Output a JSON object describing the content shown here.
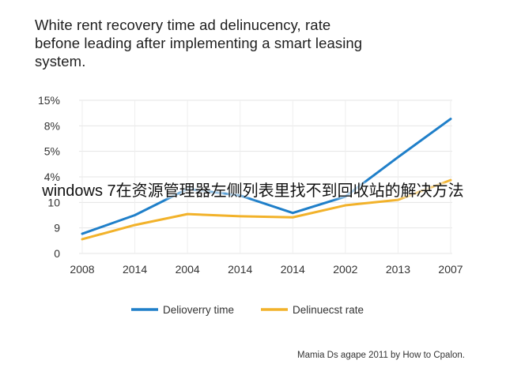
{
  "chart_data": {
    "type": "line",
    "title_lines": [
      "White rent recovery time ad delinucency, rate",
      "befone leading after implementing a smart leasing",
      "system."
    ],
    "categories": [
      "2008",
      "2014",
      "2004",
      "2014",
      "2014",
      "2002",
      "2013",
      "2007"
    ],
    "y_tick_labels": [
      "0",
      "9",
      "10",
      "4%",
      "5%",
      "8%",
      "15%"
    ],
    "series": [
      {
        "name": "Delioverry time",
        "color": "#1f7fc9",
        "values": [
          0.9,
          1.75,
          2.95,
          2.65,
          1.85,
          2.6,
          4.4,
          6.15
        ]
      },
      {
        "name": "Delinuecst rate",
        "color": "#f2b22a",
        "values": [
          0.65,
          1.3,
          1.8,
          1.7,
          1.65,
          2.2,
          2.45,
          3.35
        ]
      }
    ],
    "ylim": [
      0,
      7
    ],
    "grid": true,
    "legend": "bottom"
  },
  "overlay_text": "windows 7在资源管理器左侧列表里找不到回收站的解决方法",
  "source_note": "Mamia Ds agape 2011 by How to Cpalon."
}
